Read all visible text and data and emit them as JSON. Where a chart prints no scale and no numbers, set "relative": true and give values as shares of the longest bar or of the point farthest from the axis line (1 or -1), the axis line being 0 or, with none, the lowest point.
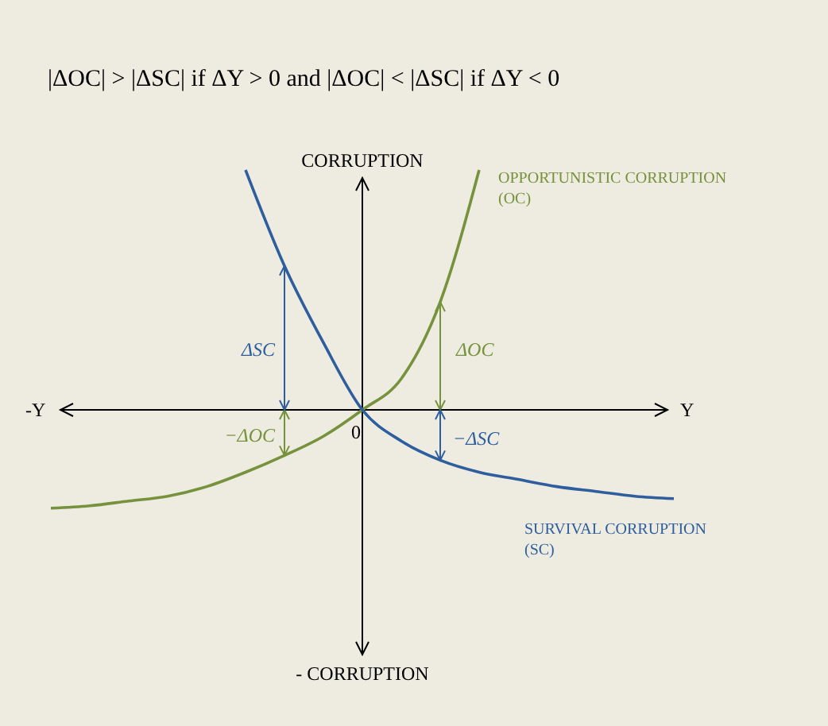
{
  "chart_data": {
    "type": "line",
    "relative": true,
    "title": "|ΔOC| > |ΔSC|  if ΔY > 0 and |ΔOC| < |ΔSC|  if ΔY < 0",
    "xlabel": "Y",
    "ylabel": "CORRUPTION",
    "categories": [
      null,
      null,
      null,
      null,
      null,
      null,
      null,
      null,
      null,
      null,
      null,
      null,
      null,
      null,
      null,
      null,
      null
    ],
    "series": [
      {
        "name": "OPPORTUNISTIC CORRUPTION (OC)",
        "color": "#76923c",
        "values": [
          -0.41,
          -0.4,
          -0.38,
          -0.36,
          -0.32,
          -0.26,
          -0.19,
          -0.11,
          0,
          0.13,
          0.45,
          1.0,
          null,
          null,
          null,
          null,
          null
        ]
      },
      {
        "name": "SURVIVAL CORRUPTION (SC)",
        "color": "#2e5e9e",
        "values": [
          null,
          null,
          null,
          null,
          null,
          1.0,
          0.6,
          0.28,
          0,
          -0.13,
          -0.21,
          -0.26,
          -0.29,
          -0.32,
          -0.34,
          -0.36,
          -0.37
        ]
      }
    ],
    "annotations": [
      "ΔSC",
      "−ΔOC",
      "ΔOC",
      "−ΔSC",
      "0",
      "-Y",
      "- CORRUPTION"
    ]
  }
}
